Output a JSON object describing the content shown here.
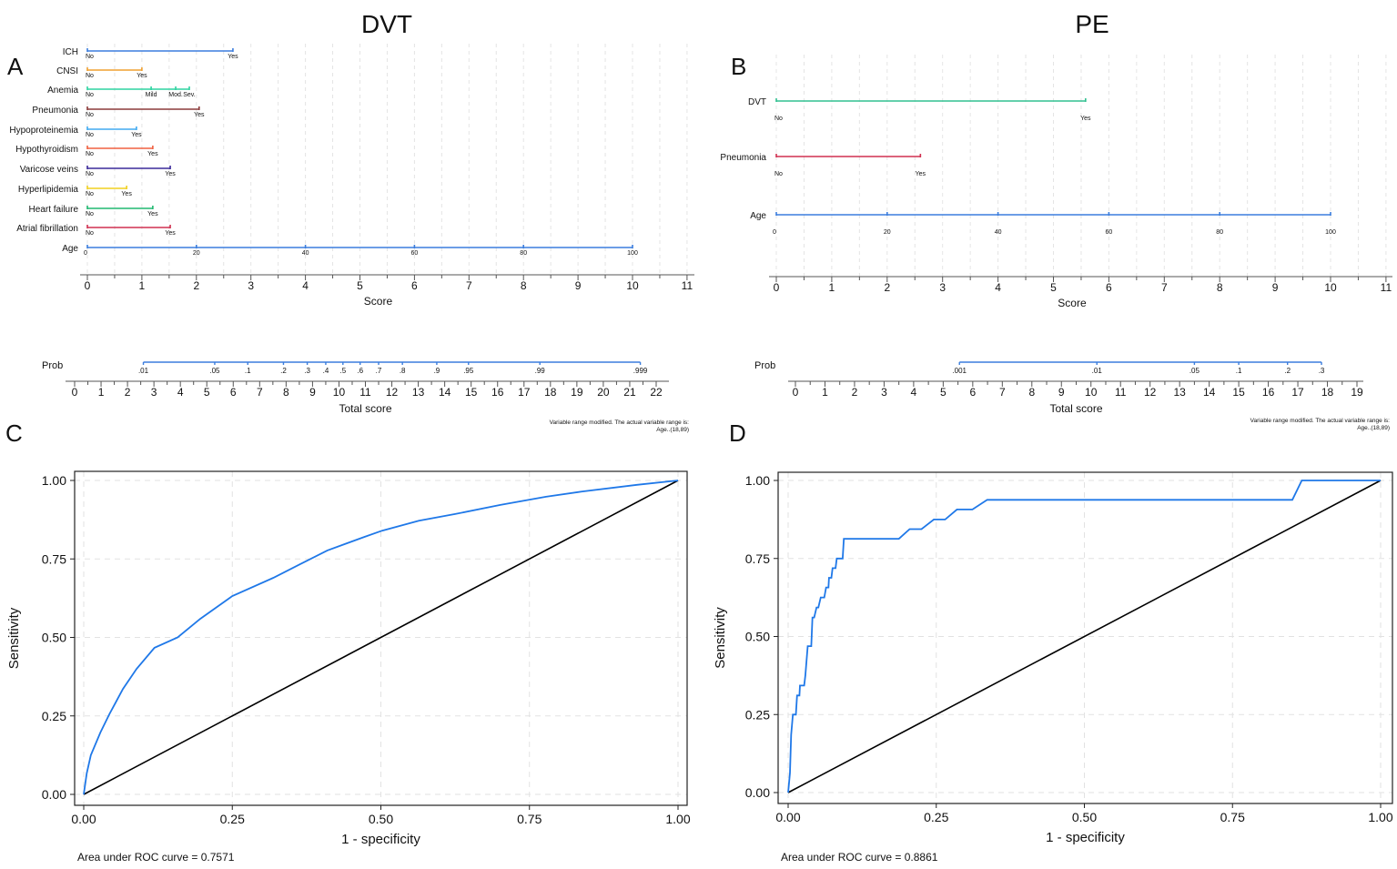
{
  "chart_data": [
    {
      "panel": "A",
      "type": "nomogram",
      "title": "DVT",
      "predictors": [
        {
          "name": "ICH",
          "color": "#3b7ddd",
          "levels": [
            {
              "label": "No",
              "points": 0
            },
            {
              "label": "Yes",
              "points": 2.67
            }
          ]
        },
        {
          "name": "CNSI",
          "color": "#f0a030",
          "levels": [
            {
              "label": "No",
              "points": 0
            },
            {
              "label": "Yes",
              "points": 1.0
            }
          ]
        },
        {
          "name": "Anemia",
          "color": "#2ed3a0",
          "levels": [
            {
              "label": "No",
              "points": 0
            },
            {
              "label": "Mild",
              "points": 1.17
            },
            {
              "label": "Mod.",
              "points": 1.62
            },
            {
              "label": "Sev.",
              "points": 1.87
            }
          ]
        },
        {
          "name": "Pneumonia",
          "color": "#8b3a3a",
          "levels": [
            {
              "label": "No",
              "points": 0
            },
            {
              "label": "Yes",
              "points": 2.05
            }
          ]
        },
        {
          "name": "Hypoproteinemia",
          "color": "#40aaf0",
          "levels": [
            {
              "label": "No",
              "points": 0
            },
            {
              "label": "Yes",
              "points": 0.9
            }
          ]
        },
        {
          "name": "Hypothyroidism",
          "color": "#f06040",
          "levels": [
            {
              "label": "No",
              "points": 0
            },
            {
              "label": "Yes",
              "points": 1.2
            }
          ]
        },
        {
          "name": "Varicose veins",
          "color": "#3b2a9a",
          "levels": [
            {
              "label": "No",
              "points": 0
            },
            {
              "label": "Yes",
              "points": 1.52
            }
          ]
        },
        {
          "name": "Hyperlipidemia",
          "color": "#f0d020",
          "levels": [
            {
              "label": "No",
              "points": 0
            },
            {
              "label": "Yes",
              "points": 0.72
            }
          ]
        },
        {
          "name": "Heart failure",
          "color": "#20b870",
          "levels": [
            {
              "label": "No",
              "points": 0
            },
            {
              "label": "Yes",
              "points": 1.2
            }
          ]
        },
        {
          "name": "Atrial fibrillation",
          "color": "#d03050",
          "levels": [
            {
              "label": "No",
              "points": 0
            },
            {
              "label": "Yes",
              "points": 1.52
            }
          ]
        },
        {
          "name": "Age",
          "color": "#3b7ddd",
          "levels": [
            {
              "label": "0",
              "points": 0
            },
            {
              "label": "20",
              "points": 2
            },
            {
              "label": "40",
              "points": 4
            },
            {
              "label": "60",
              "points": 6
            },
            {
              "label": "80",
              "points": 8
            },
            {
              "label": "100",
              "points": 10
            }
          ]
        }
      ],
      "score_axis": {
        "label": "Score",
        "range": [
          0,
          11
        ],
        "ticks": [
          0,
          1,
          2,
          3,
          4,
          5,
          6,
          7,
          8,
          9,
          10,
          11
        ]
      },
      "prob": {
        "label": "Prob",
        "color": "#3b7ddd",
        "marks": [
          {
            "label": ".01",
            "total": 2.6
          },
          {
            "label": ".05",
            "total": 5.3
          },
          {
            "label": ".1",
            "total": 6.55
          },
          {
            "label": ".2",
            "total": 7.9
          },
          {
            "label": ".3",
            "total": 8.8
          },
          {
            "label": ".4",
            "total": 9.5
          },
          {
            "label": ".5",
            "total": 10.15
          },
          {
            "label": ".6",
            "total": 10.8
          },
          {
            "label": ".7",
            "total": 11.5
          },
          {
            "label": ".8",
            "total": 12.4
          },
          {
            "label": ".9",
            "total": 13.7
          },
          {
            "label": ".95",
            "total": 14.9
          },
          {
            "label": ".99",
            "total": 17.6
          },
          {
            "label": ".999",
            "total": 21.4
          }
        ]
      },
      "total_axis": {
        "label": "Total score",
        "range": [
          0,
          22
        ],
        "ticks": [
          0,
          1,
          2,
          3,
          4,
          5,
          6,
          7,
          8,
          9,
          10,
          11,
          12,
          13,
          14,
          15,
          16,
          17,
          18,
          19,
          20,
          21,
          22
        ]
      },
      "note": [
        "Variable range modified. The actual variable range is:",
        "Age..(18,89)"
      ]
    },
    {
      "panel": "B",
      "type": "nomogram",
      "title": "PE",
      "predictors": [
        {
          "name": "DVT",
          "color": "#30c090",
          "levels": [
            {
              "label": "No",
              "points": 0
            },
            {
              "label": "Yes",
              "points": 5.58
            }
          ]
        },
        {
          "name": "Pneumonia",
          "color": "#d03050",
          "levels": [
            {
              "label": "No",
              "points": 0
            },
            {
              "label": "Yes",
              "points": 2.6
            }
          ]
        },
        {
          "name": "Age",
          "color": "#3b7ddd",
          "levels": [
            {
              "label": "0",
              "points": 0
            },
            {
              "label": "20",
              "points": 2
            },
            {
              "label": "40",
              "points": 4
            },
            {
              "label": "60",
              "points": 6
            },
            {
              "label": "80",
              "points": 8
            },
            {
              "label": "100",
              "points": 10
            }
          ]
        }
      ],
      "score_axis": {
        "label": "Score",
        "range": [
          0,
          11
        ],
        "ticks": [
          0,
          1,
          2,
          3,
          4,
          5,
          6,
          7,
          8,
          9,
          10,
          11
        ]
      },
      "prob": {
        "label": "Prob",
        "color": "#3b7ddd",
        "marks": [
          {
            "label": ".001",
            "total": 5.55
          },
          {
            "label": ".01",
            "total": 10.2
          },
          {
            "label": ".05",
            "total": 13.5
          },
          {
            "label": ".1",
            "total": 15.0
          },
          {
            "label": ".2",
            "total": 16.65
          },
          {
            "label": ".3",
            "total": 17.8
          }
        ]
      },
      "total_axis": {
        "label": "Total score",
        "range": [
          0,
          19
        ],
        "ticks": [
          0,
          1,
          2,
          3,
          4,
          5,
          6,
          7,
          8,
          9,
          10,
          11,
          12,
          13,
          14,
          15,
          16,
          17,
          18,
          19
        ]
      },
      "note": [
        "Variable range modified. The actual variable range is:",
        "Age..(18,89)"
      ]
    },
    {
      "panel": "C",
      "type": "line",
      "xlabel": "1 - specificity",
      "ylabel": "Sensitivity",
      "xlim": [
        0,
        1
      ],
      "ylim": [
        0,
        1
      ],
      "xticks": [
        "0.00",
        "0.25",
        "0.50",
        "0.75",
        "1.00"
      ],
      "yticks": [
        "0.00",
        "0.25",
        "0.50",
        "0.75",
        "1.00"
      ],
      "grid": true,
      "auc_text": "Area under ROC curve = 0.7571",
      "series": [
        {
          "name": "ROC",
          "color": "#1f78e8",
          "x": [
            0,
            0.005,
            0.012,
            0.028,
            0.043,
            0.066,
            0.089,
            0.119,
            0.158,
            0.196,
            0.25,
            0.319,
            0.364,
            0.41,
            0.472,
            0.502,
            0.564,
            0.625,
            0.701,
            0.778,
            0.839,
            0.931,
            1
          ],
          "y": [
            0,
            0.067,
            0.125,
            0.197,
            0.255,
            0.336,
            0.4,
            0.467,
            0.5,
            0.559,
            0.632,
            0.69,
            0.733,
            0.777,
            0.82,
            0.84,
            0.872,
            0.893,
            0.922,
            0.948,
            0.965,
            0.986,
            1
          ]
        },
        {
          "name": "Reference",
          "color": "#000000",
          "x": [
            0,
            1
          ],
          "y": [
            0,
            1
          ]
        }
      ]
    },
    {
      "panel": "D",
      "type": "line",
      "xlabel": "1 - specificity",
      "ylabel": "Sensitivity",
      "xlim": [
        0,
        1
      ],
      "ylim": [
        0,
        1
      ],
      "xticks": [
        "0.00",
        "0.25",
        "0.50",
        "0.75",
        "1.00"
      ],
      "yticks": [
        "0.00",
        "0.25",
        "0.50",
        "0.75",
        "1.00"
      ],
      "grid": true,
      "auc_text": "Area under ROC curve = 0.8861",
      "series": [
        {
          "name": "ROC",
          "color": "#1f78e8",
          "x": [
            0,
            0.003,
            0.005,
            0.008,
            0.013,
            0.015,
            0.019,
            0.02,
            0.027,
            0.029,
            0.033,
            0.039,
            0.041,
            0.044,
            0.048,
            0.051,
            0.055,
            0.061,
            0.064,
            0.068,
            0.069,
            0.073,
            0.075,
            0.08,
            0.082,
            0.092,
            0.094,
            0.187,
            0.205,
            0.225,
            0.246,
            0.265,
            0.285,
            0.311,
            0.336,
            0.851,
            0.867,
            1
          ],
          "y": [
            0,
            0.063,
            0.185,
            0.25,
            0.25,
            0.311,
            0.311,
            0.343,
            0.343,
            0.375,
            0.469,
            0.469,
            0.561,
            0.561,
            0.593,
            0.593,
            0.625,
            0.625,
            0.657,
            0.657,
            0.688,
            0.688,
            0.719,
            0.719,
            0.75,
            0.75,
            0.813,
            0.813,
            0.844,
            0.844,
            0.875,
            0.875,
            0.907,
            0.907,
            0.938,
            0.938,
            1,
            1
          ]
        },
        {
          "name": "Reference",
          "color": "#000000",
          "x": [
            0,
            1
          ],
          "y": [
            0,
            1
          ]
        }
      ]
    }
  ]
}
